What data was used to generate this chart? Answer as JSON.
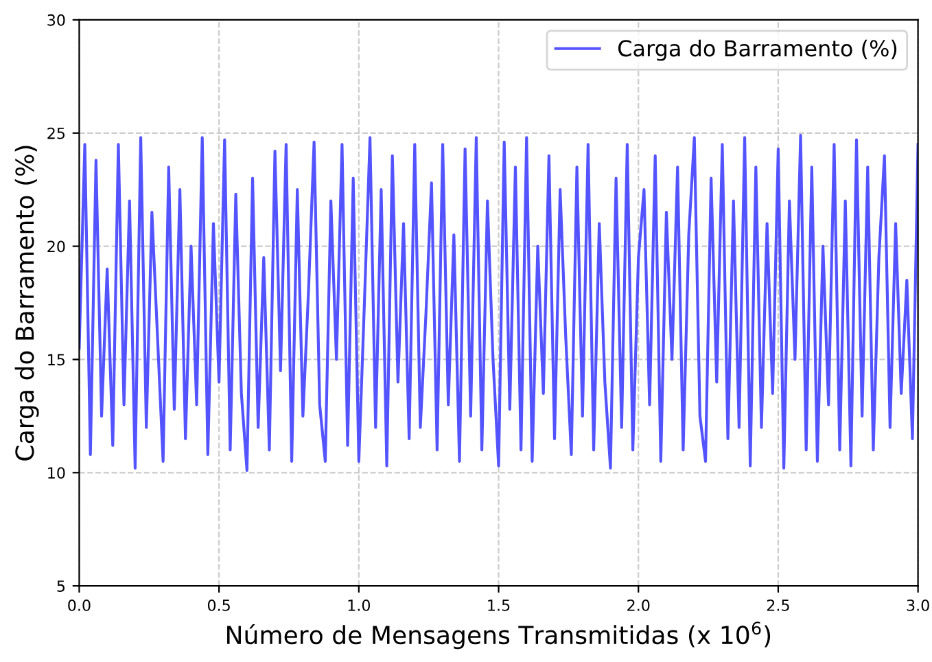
{
  "chart_data": {
    "type": "line",
    "xlabel": "Número de Mensagens Transmitidas (x 10$^{6}$)",
    "ylabel": "Carga do Barramento (%)",
    "xlim": [
      0,
      3.0
    ],
    "xticks": [
      {
        "value": 0,
        "label": "0.0"
      },
      0.5,
      {
        "value": 1,
        "label": "1.0"
      },
      1.5,
      {
        "value": 2,
        "label": "2.0"
      },
      2.5,
      {
        "value": 3,
        "label": "3.0"
      }
    ],
    "ylim": [
      5,
      30
    ],
    "yticks": [
      5,
      10,
      15,
      20,
      25,
      30
    ],
    "grid": true,
    "legend": "top right",
    "series": [
      {
        "name": "Carga do Barramento (%)",
        "color": "#4b4bff",
        "x": [
          0.0,
          0.02,
          0.04,
          0.06,
          0.08,
          0.1,
          0.12,
          0.14,
          0.16,
          0.18,
          0.2,
          0.22,
          0.24,
          0.26,
          0.28,
          0.3,
          0.32,
          0.34,
          0.36,
          0.38,
          0.4,
          0.42,
          0.44,
          0.46,
          0.48,
          0.5,
          0.52,
          0.54,
          0.56,
          0.58,
          0.6,
          0.62,
          0.64,
          0.66,
          0.68,
          0.7,
          0.72,
          0.74,
          0.76,
          0.78,
          0.8,
          0.82,
          0.84,
          0.86,
          0.88,
          0.9,
          0.92,
          0.94,
          0.96,
          0.98,
          1.0,
          1.02,
          1.04,
          1.06,
          1.08,
          1.1,
          1.12,
          1.14,
          1.16,
          1.18,
          1.2,
          1.22,
          1.24,
          1.26,
          1.28,
          1.3,
          1.32,
          1.34,
          1.36,
          1.38,
          1.4,
          1.42,
          1.44,
          1.46,
          1.48,
          1.5,
          1.52,
          1.54,
          1.56,
          1.58,
          1.6,
          1.62,
          1.64,
          1.66,
          1.68,
          1.7,
          1.72,
          1.74,
          1.76,
          1.78,
          1.8,
          1.82,
          1.84,
          1.86,
          1.88,
          1.9,
          1.92,
          1.94,
          1.96,
          1.98,
          2.0,
          2.02,
          2.04,
          2.06,
          2.08,
          2.1,
          2.12,
          2.14,
          2.16,
          2.18,
          2.2,
          2.22,
          2.24,
          2.26,
          2.28,
          2.3,
          2.32,
          2.34,
          2.36,
          2.38,
          2.4,
          2.42,
          2.44,
          2.46,
          2.48,
          2.5,
          2.52,
          2.54,
          2.56,
          2.58,
          2.6,
          2.62,
          2.64,
          2.66,
          2.68,
          2.7,
          2.72,
          2.74,
          2.76,
          2.78,
          2.8,
          2.82,
          2.84,
          2.86,
          2.88,
          2.9,
          2.92,
          2.94,
          2.96,
          2.98,
          3.0
        ],
        "values": [
          15.5,
          24.5,
          10.8,
          23.8,
          12.5,
          19.0,
          11.2,
          24.5,
          13.0,
          22.0,
          10.2,
          24.8,
          12.0,
          21.5,
          16.0,
          10.5,
          23.5,
          12.8,
          22.5,
          11.5,
          20.0,
          13.0,
          24.8,
          10.8,
          21.0,
          14.0,
          24.7,
          11.0,
          22.3,
          13.5,
          10.1,
          23.0,
          12.0,
          19.5,
          11.0,
          24.2,
          14.5,
          24.5,
          10.5,
          22.5,
          12.5,
          18.0,
          24.6,
          13.0,
          10.5,
          22.0,
          15.0,
          24.5,
          11.2,
          23.0,
          10.5,
          17.5,
          24.8,
          12.0,
          22.5,
          10.3,
          24.0,
          14.0,
          21.0,
          11.5,
          24.5,
          12.0,
          17.0,
          22.8,
          11.0,
          24.5,
          13.0,
          20.5,
          10.5,
          24.3,
          12.5,
          24.8,
          11.0,
          22.0,
          15.0,
          10.3,
          24.6,
          12.8,
          23.5,
          11.0,
          24.8,
          10.5,
          20.0,
          13.5,
          24.0,
          11.5,
          22.5,
          16.0,
          10.8,
          23.5,
          12.5,
          24.5,
          11.0,
          21.0,
          14.0,
          10.2,
          23.0,
          12.0,
          24.5,
          11.0,
          19.5,
          22.5,
          13.0,
          24.0,
          10.5,
          21.5,
          15.0,
          23.5,
          11.0,
          20.5,
          24.8,
          12.5,
          10.5,
          23.0,
          14.0,
          24.5,
          11.5,
          22.0,
          12.0,
          24.8,
          10.3,
          23.5,
          12.0,
          21.0,
          13.5,
          24.3,
          10.2,
          22.0,
          15.0,
          24.9,
          11.0,
          23.5,
          10.5,
          20.0,
          13.0,
          24.5,
          11.0,
          22.0,
          10.3,
          24.7,
          12.5,
          23.5,
          11.0,
          19.5,
          24.0,
          12.0,
          21.0,
          13.5,
          18.5,
          11.5,
          24.5
        ]
      }
    ]
  }
}
